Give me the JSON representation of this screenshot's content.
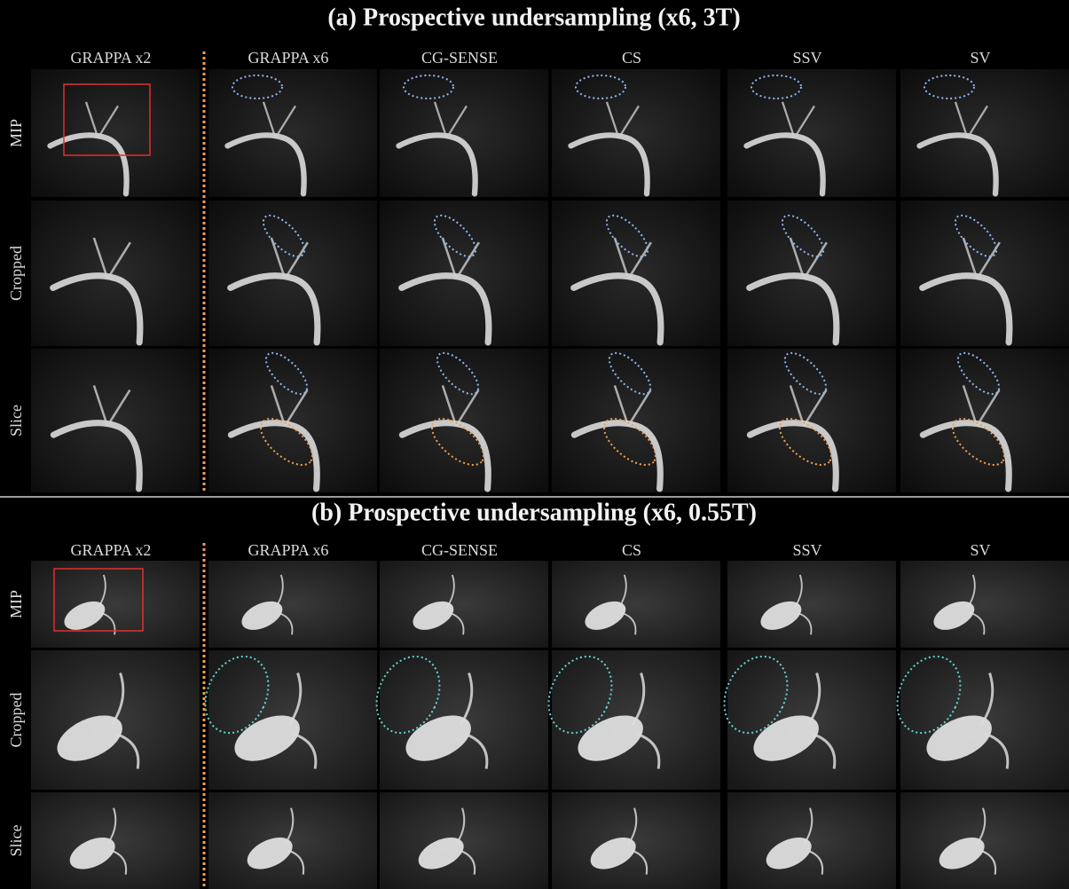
{
  "panels": [
    {
      "title": "(a) Prospective undersampling (x6, 3T)",
      "columns": [
        "GRAPPA x2",
        "GRAPPA x6",
        "CG-SENSE",
        "CS",
        "SSV",
        "SV"
      ],
      "rows": [
        "MIP",
        "Cropped",
        "Slice"
      ]
    },
    {
      "title": "(b) Prospective undersampling (x6, 0.55T)",
      "columns": [
        "GRAPPA x2",
        "GRAPPA x6",
        "CG-SENSE",
        "CS",
        "SSV",
        "SV"
      ],
      "rows": [
        "MIP",
        "Cropped",
        "Slice"
      ]
    }
  ]
}
